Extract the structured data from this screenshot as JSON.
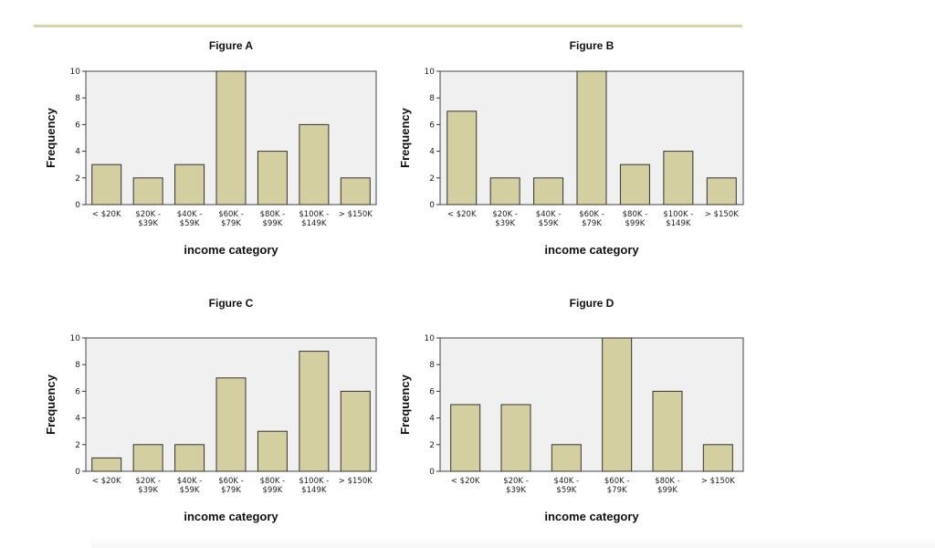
{
  "colors": {
    "bar_fill": "#d4cfa1",
    "bar_stroke": "#333333",
    "plot_bg": "#f0f0f0",
    "plot_border": "#444444",
    "divider": "#d9d2ab"
  },
  "chart_data": [
    {
      "type": "bar",
      "title": "Figure A",
      "xlabel": "income category",
      "ylabel": "Frequency",
      "ylim": [
        0,
        10
      ],
      "yticks": [
        0,
        2,
        4,
        6,
        8,
        10
      ],
      "grid": false,
      "categories": [
        [
          "< $20K"
        ],
        [
          "$20K -",
          "$39K"
        ],
        [
          "$40K -",
          "$59K"
        ],
        [
          "$60K -",
          "$79K"
        ],
        [
          "$80K -",
          "$99K"
        ],
        [
          "$100K -",
          "$149K"
        ],
        [
          "> $150K"
        ]
      ],
      "values": [
        3,
        2,
        3,
        10,
        4,
        6,
        2
      ]
    },
    {
      "type": "bar",
      "title": "Figure B",
      "xlabel": "income category",
      "ylabel": "Frequency",
      "ylim": [
        0,
        10
      ],
      "yticks": [
        0,
        2,
        4,
        6,
        8,
        10
      ],
      "grid": false,
      "categories": [
        [
          "< $20K"
        ],
        [
          "$20K -",
          "$39K"
        ],
        [
          "$40K -",
          "$59K"
        ],
        [
          "$60K -",
          "$79K"
        ],
        [
          "$80K -",
          "$99K"
        ],
        [
          "$100K -",
          "$149K"
        ],
        [
          "> $150K"
        ]
      ],
      "values": [
        7,
        2,
        2,
        10,
        3,
        4,
        2
      ]
    },
    {
      "type": "bar",
      "title": "Figure C",
      "xlabel": "income category",
      "ylabel": "Frequency",
      "ylim": [
        0,
        10
      ],
      "yticks": [
        0,
        2,
        4,
        6,
        8,
        10
      ],
      "grid": false,
      "categories": [
        [
          "< $20K"
        ],
        [
          "$20K -",
          "$39K"
        ],
        [
          "$40K -",
          "$59K"
        ],
        [
          "$60K -",
          "$79K"
        ],
        [
          "$80K -",
          "$99K"
        ],
        [
          "$100K -",
          "$149K"
        ],
        [
          "> $150K"
        ]
      ],
      "values": [
        1,
        2,
        2,
        7,
        3,
        9,
        6
      ]
    },
    {
      "type": "bar",
      "title": "Figure D",
      "xlabel": "income category",
      "ylabel": "Frequency",
      "ylim": [
        0,
        10
      ],
      "yticks": [
        0,
        2,
        4,
        6,
        8,
        10
      ],
      "grid": false,
      "categories": [
        [
          "< $20K"
        ],
        [
          "$20K -",
          "$39K"
        ],
        [
          "$40K -",
          "$59K"
        ],
        [
          "$60K -",
          "$79K"
        ],
        [
          "$80K -",
          "$99K"
        ],
        [
          "> $150K"
        ]
      ],
      "values": [
        5,
        5,
        2,
        10,
        6,
        2
      ]
    }
  ]
}
